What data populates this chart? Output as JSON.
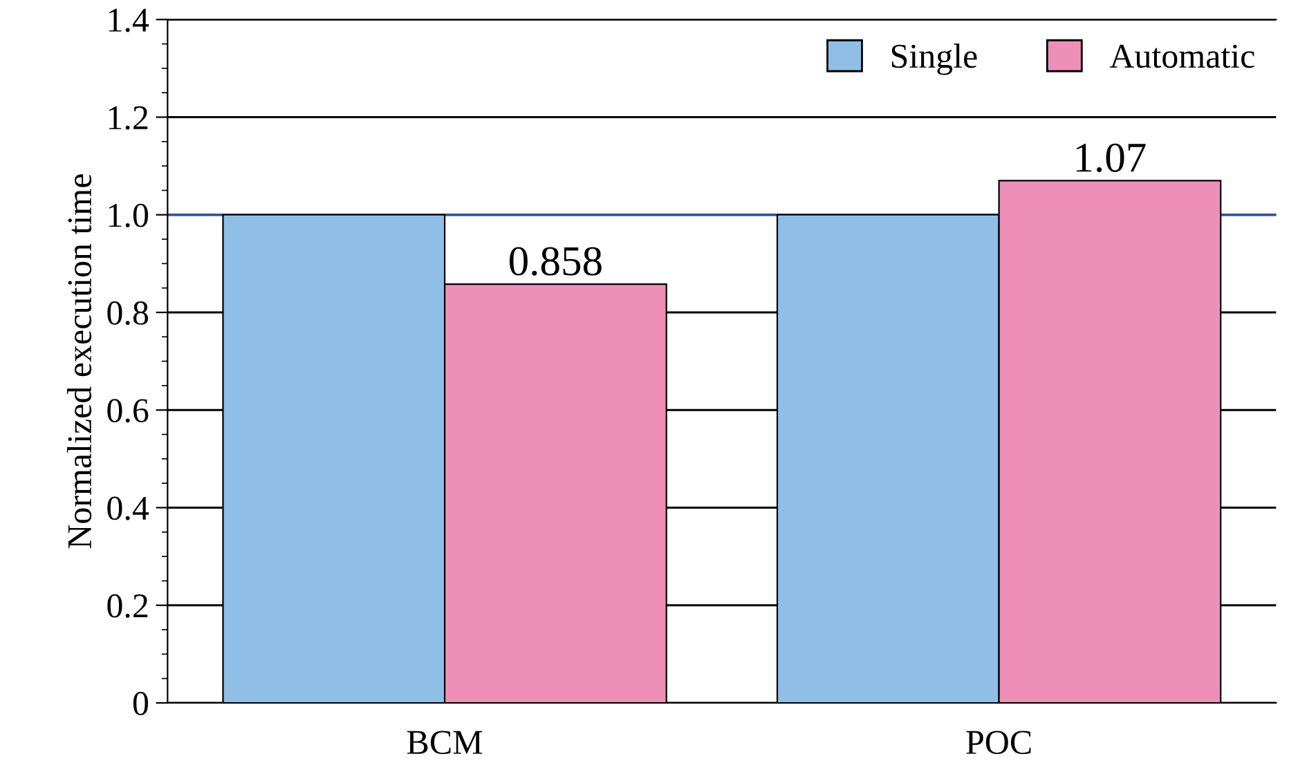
{
  "chart_data": {
    "type": "bar",
    "ylabel": "Normalized execution time",
    "categories": [
      "BCM",
      "POC"
    ],
    "series": [
      {
        "name": "Single",
        "color": "#8fbfe6",
        "values": [
          1.0,
          1.0
        ]
      },
      {
        "name": "Automatic",
        "color": "#ee8fb8",
        "values": [
          0.858,
          1.07
        ],
        "value_labels": [
          "0.858",
          "1.07"
        ]
      }
    ],
    "ylim": [
      0,
      1.4
    ],
    "yticks": [
      0,
      0.2,
      0.4,
      0.6,
      0.8,
      {
        "value": 1,
        "label": "1.0"
      },
      1.2,
      1.4
    ],
    "grid": "y",
    "legend": "top right",
    "ref_lines": [
      {
        "axis": "y",
        "value": 1,
        "color": "#2f5597"
      }
    ]
  }
}
